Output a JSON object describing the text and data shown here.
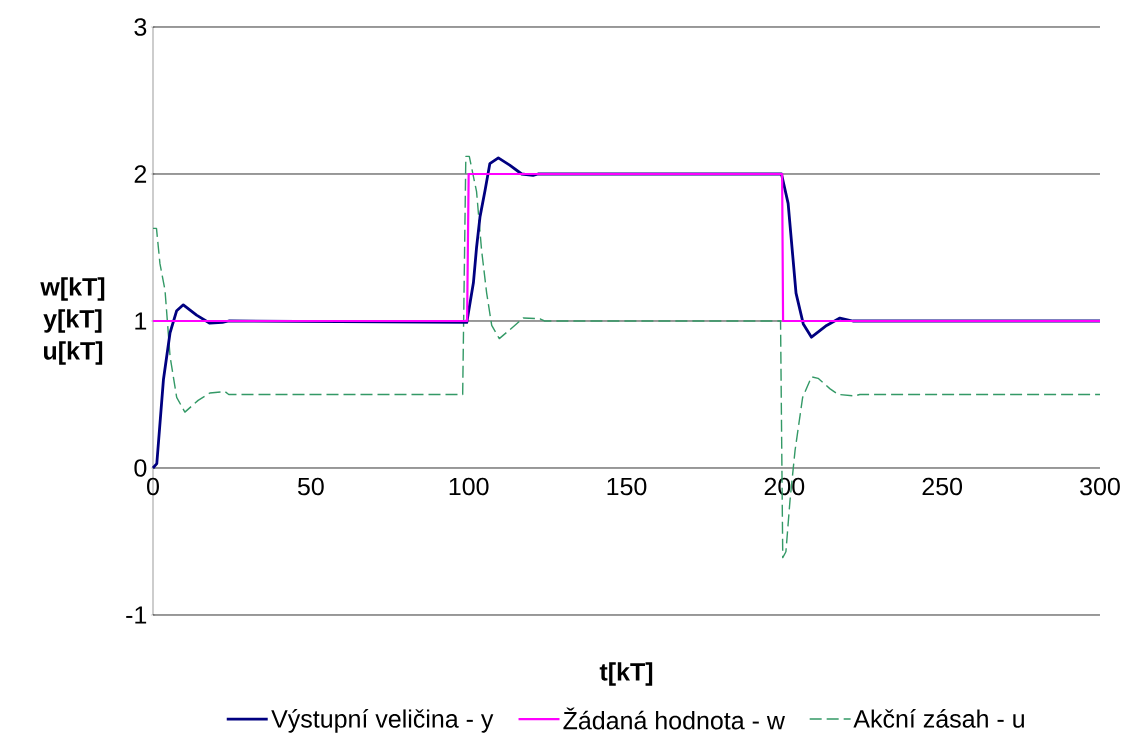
{
  "chart_data": {
    "type": "line",
    "xlabel": "t[kT]",
    "ylabel": "w[kT] y[kT] u[kT]",
    "xlim": [
      0,
      300
    ],
    "xticks": [
      0,
      50,
      100,
      150,
      200,
      250,
      300
    ],
    "ylim": [
      -1,
      3
    ],
    "yticks": [
      -1,
      0,
      1,
      2,
      3
    ],
    "grid": "y",
    "legend": "bottom",
    "marker": "none",
    "series": [
      {
        "name": "Výstupní veličina - y",
        "color": "#000080",
        "line_style": "solid",
        "x": [
          0,
          1.2,
          3.3,
          5.4,
          7.5,
          9.6,
          13.8,
          18,
          22,
          24,
          99.4,
          101.5,
          102.5,
          103.6,
          105.2,
          106.7,
          109.4,
          113,
          116.8,
          120.4,
          122,
          199.1,
          201.2,
          202.8,
          203.7,
          206,
          208.6,
          213.4,
          217.6,
          221.7,
          300
        ],
        "values": [
          0,
          0.03,
          0.6,
          0.92,
          1.07,
          1.11,
          1.04,
          0.985,
          0.99,
          1.0,
          0.99,
          1.26,
          1.5,
          1.71,
          1.89,
          2.07,
          2.11,
          2.06,
          2.0,
          1.99,
          2.0,
          2.0,
          1.8,
          1.41,
          1.19,
          0.98,
          0.89,
          0.97,
          1.02,
          1.0,
          1.0
        ]
      },
      {
        "name": "Žádaná hodnota - w",
        "color": "#ff00ff",
        "line_style": "solid",
        "x": [
          0,
          99.5,
          100,
          199.3,
          199.6,
          300
        ],
        "values": [
          1,
          1,
          2,
          2,
          1,
          1
        ]
      },
      {
        "name": "Akční zásah - u",
        "color": "#339966",
        "line_style": "dashed",
        "x": [
          0,
          1.1,
          2.2,
          3.8,
          5.4,
          7.5,
          10.1,
          14.3,
          18,
          22.8,
          24,
          98.1,
          99.1,
          100.2,
          102.5,
          104.1,
          105.7,
          107.3,
          109.7,
          113,
          117.3,
          122.6,
          124,
          198.8,
          199.5,
          200.5,
          201.8,
          203.4,
          205.8,
          208.6,
          210.7,
          214.4,
          217.1,
          222.4,
          223.9,
          300
        ],
        "values": [
          1.63,
          1.63,
          1.39,
          1.21,
          0.76,
          0.48,
          0.38,
          0.46,
          0.51,
          0.52,
          0.5,
          0.5,
          2.12,
          2.12,
          1.88,
          1.48,
          1.19,
          0.97,
          0.88,
          0.94,
          1.02,
          1.015,
          1.0,
          1.0,
          -0.61,
          -0.57,
          -0.22,
          0.12,
          0.48,
          0.62,
          0.61,
          0.54,
          0.5,
          0.49,
          0.5,
          0.5
        ]
      }
    ]
  }
}
